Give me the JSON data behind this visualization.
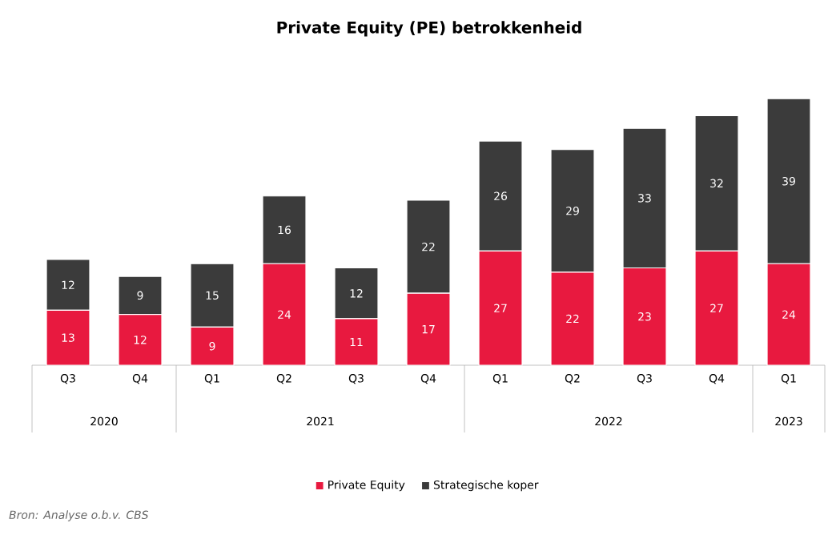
{
  "chart_data": {
    "type": "bar",
    "stacked": true,
    "title": "Private Equity (PE) betrokkenheid",
    "categories": [
      "Q3",
      "Q4",
      "Q1",
      "Q2",
      "Q3",
      "Q4",
      "Q1",
      "Q2",
      "Q3",
      "Q4",
      "Q1"
    ],
    "series": [
      {
        "name": "Private Equity",
        "color": "#e8193f",
        "values": [
          13,
          12,
          9,
          24,
          11,
          17,
          27,
          22,
          23,
          27,
          24
        ]
      },
      {
        "name": "Strategische koper",
        "color": "#3b3b3b",
        "values": [
          12,
          9,
          15,
          16,
          12,
          22,
          26,
          29,
          33,
          32,
          39
        ]
      }
    ],
    "data_labels": true,
    "legend": "bottom",
    "annotations": [
      "2020",
      "2021",
      "2022",
      "2023",
      "Bron: Analyse o.b.v. CBS"
    ]
  }
}
